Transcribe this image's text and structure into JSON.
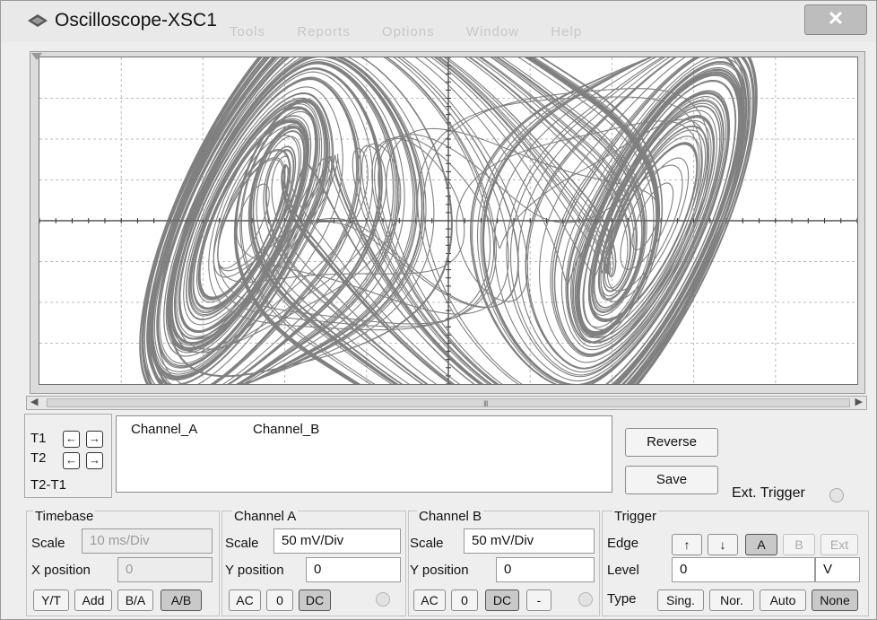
{
  "window": {
    "title": "Oscilloscope-XSC1",
    "close_label": "✕",
    "ghost_menu": [
      "Tools",
      "Reports",
      "Options",
      "Window",
      "Help"
    ]
  },
  "scrollbar": {
    "grip": "III"
  },
  "cursors": {
    "t1_label": "T1",
    "t2_label": "T2",
    "diff_label": "T2-T1",
    "left_arrow": "←",
    "right_arrow": "→"
  },
  "readout": {
    "channel_a": "Channel_A",
    "channel_b": "Channel_B"
  },
  "buttons": {
    "reverse": "Reverse",
    "save": "Save"
  },
  "ext_trigger_label": "Ext. Trigger",
  "timebase": {
    "title": "Timebase",
    "scale_label": "Scale",
    "scale_value": "10 ms/Div",
    "xpos_label": "X position",
    "xpos_value": "0",
    "modes": [
      "Y/T",
      "Add",
      "B/A",
      "A/B"
    ],
    "active_mode": "A/B"
  },
  "channel_a": {
    "title": "Channel A",
    "scale_label": "Scale",
    "scale_value": "50 mV/Div",
    "ypos_label": "Y position",
    "ypos_value": "0",
    "coupling": [
      "AC",
      "0",
      "DC"
    ],
    "active_coupling": "DC"
  },
  "channel_b": {
    "title": "Channel B",
    "scale_label": "Scale",
    "scale_value": "50 mV/Div",
    "ypos_label": "Y position",
    "ypos_value": "0",
    "coupling": [
      "AC",
      "0",
      "DC",
      "-"
    ],
    "active_coupling": "DC"
  },
  "trigger": {
    "title": "Trigger",
    "edge_label": "Edge",
    "edge_buttons": [
      "↑",
      "↓",
      "A",
      "B",
      "Ext"
    ],
    "level_label": "Level",
    "level_value": "0",
    "level_unit": "V",
    "type_label": "Type",
    "type_buttons": [
      "Sing.",
      "Nor.",
      "Auto",
      "None"
    ],
    "active_type": "None"
  },
  "colors": {
    "trace": "#6a6a6a",
    "grid": "#bcbcbc",
    "axis": "#333333"
  }
}
